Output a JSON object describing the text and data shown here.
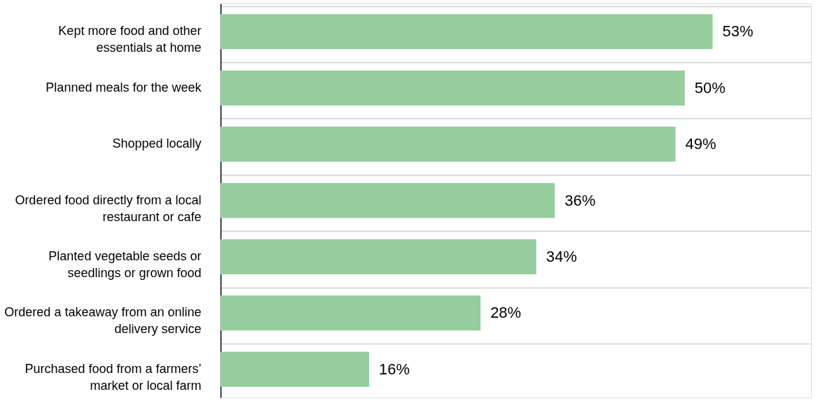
{
  "chart_data": {
    "type": "bar",
    "orientation": "horizontal",
    "categories": [
      "Kept more food and other essentials at home",
      "Planned meals for the week",
      "Shopped locally",
      "Ordered food directly from a local restaurant or cafe",
      "Planted vegetable seeds or seedlings or grown food",
      "Ordered a takeaway from an online delivery service",
      "Purchased food from a farmers’ market or local farm"
    ],
    "values": [
      53,
      50,
      49,
      36,
      34,
      28,
      16
    ],
    "value_labels": [
      "53%",
      "50%",
      "49%",
      "36%",
      "34%",
      "28%",
      "16%"
    ],
    "color": "#96cc9e",
    "grid": "y"
  }
}
